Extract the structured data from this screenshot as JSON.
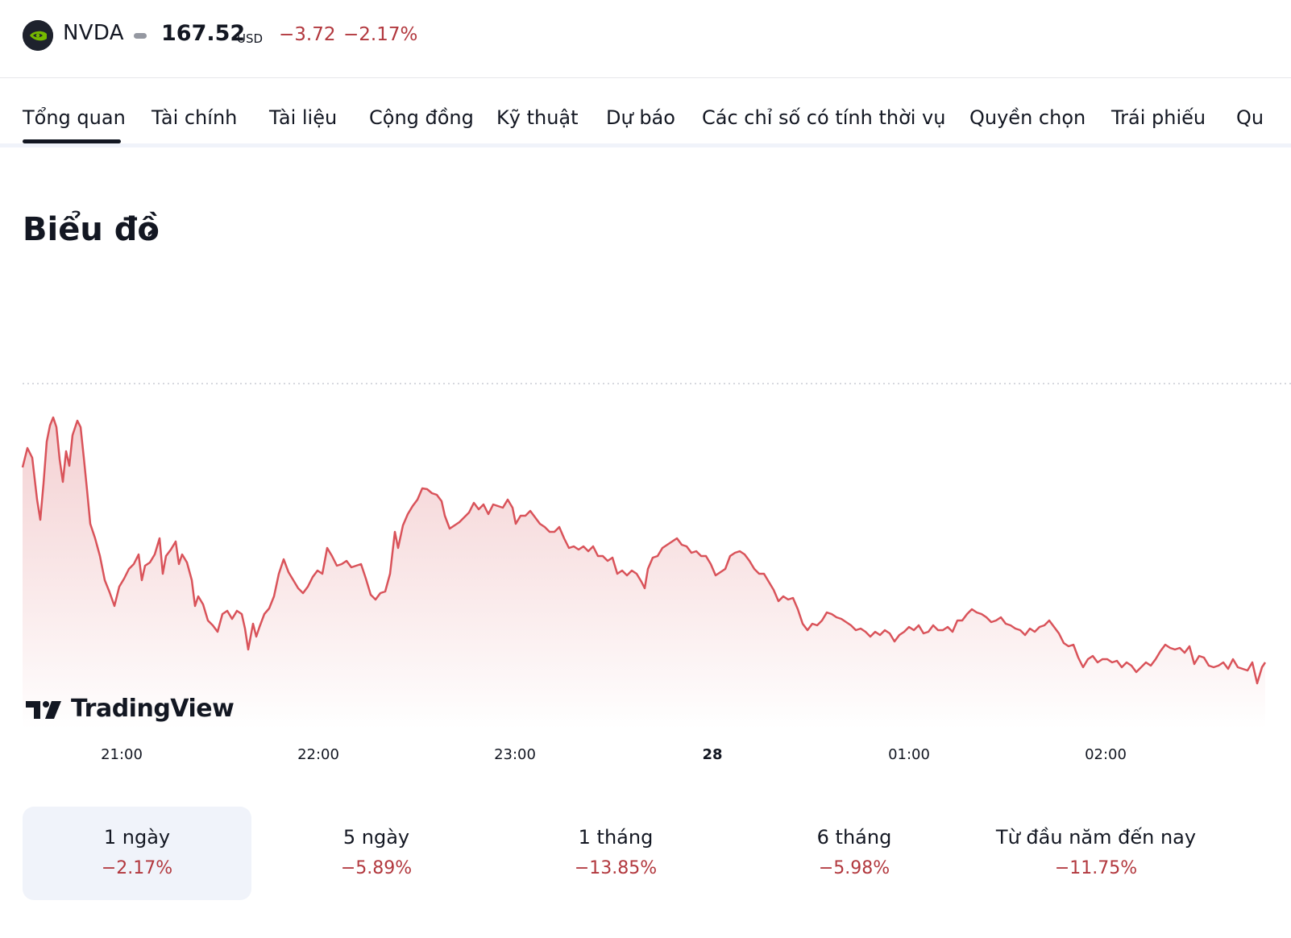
{
  "header": {
    "ticker": "NVDA",
    "price": "167.52",
    "currency": "USD",
    "change": "−3.72",
    "change_pct": "−2.17%",
    "logo_icon": "nvidia-logo-icon"
  },
  "tabs": [
    {
      "label": "Tổng quan",
      "active": true
    },
    {
      "label": "Tài chính"
    },
    {
      "label": "Tài liệu"
    },
    {
      "label": "Cộng đồng"
    },
    {
      "label": "Kỹ thuật"
    },
    {
      "label": "Dự báo"
    },
    {
      "label": "Các chỉ số có tính thời vụ"
    },
    {
      "label": "Quyền chọn"
    },
    {
      "label": "Trái phiếu"
    },
    {
      "label": "Qu"
    }
  ],
  "section": {
    "title": "Biểu đồ",
    "arrow": "›"
  },
  "chart_data": {
    "type": "area",
    "x": [
      "20:30",
      "21:00",
      "21:30",
      "22:00",
      "22:30",
      "23:00",
      "23:30",
      "00:00",
      "00:30",
      "01:00",
      "01:30",
      "02:00",
      "02:30",
      "02:45"
    ],
    "x_tick_labels": [
      "21:00",
      "22:00",
      "23:00",
      "28",
      "01:00",
      "02:00"
    ],
    "line_color": "#d9535a",
    "fill_color": "#f7d9da",
    "watermark": "TradingView"
  },
  "periods": [
    {
      "label": "1 ngày",
      "value": "−2.17%",
      "active": true
    },
    {
      "label": "5 ngày",
      "value": "−5.89%"
    },
    {
      "label": "1 tháng",
      "value": "−13.85%"
    },
    {
      "label": "6 tháng",
      "value": "−5.98%"
    },
    {
      "label": "Từ đầu năm đến nay",
      "value": "−11.75%"
    }
  ]
}
